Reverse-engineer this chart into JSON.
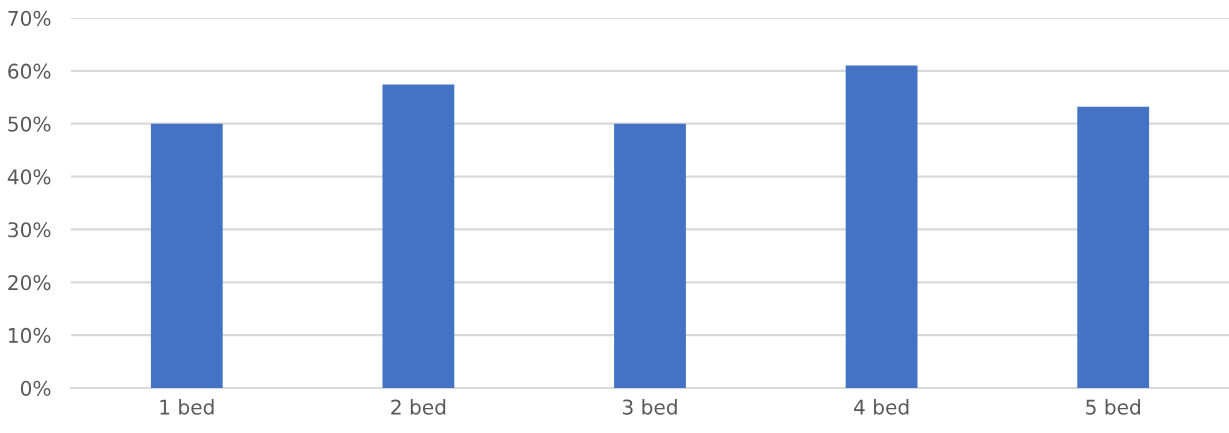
{
  "chart_data": {
    "type": "bar",
    "categories": [
      "1 bed",
      "2 bed",
      "3 bed",
      "4 bed",
      "5 bed"
    ],
    "values": [
      50,
      57.4,
      50,
      61,
      53.2
    ],
    "color": "#4472c4",
    "ylim": [
      0,
      70
    ],
    "yticks": [
      {
        "value": 0,
        "label": "0%"
      },
      {
        "value": 10,
        "label": "10%"
      },
      {
        "value": 20,
        "label": "20%"
      },
      {
        "value": 30,
        "label": "30%"
      },
      {
        "value": 40,
        "label": "40%"
      },
      {
        "value": 50,
        "label": "50%"
      },
      {
        "value": 60,
        "label": "60%"
      },
      {
        "value": 70,
        "label": "70%"
      }
    ],
    "grid": "y"
  }
}
